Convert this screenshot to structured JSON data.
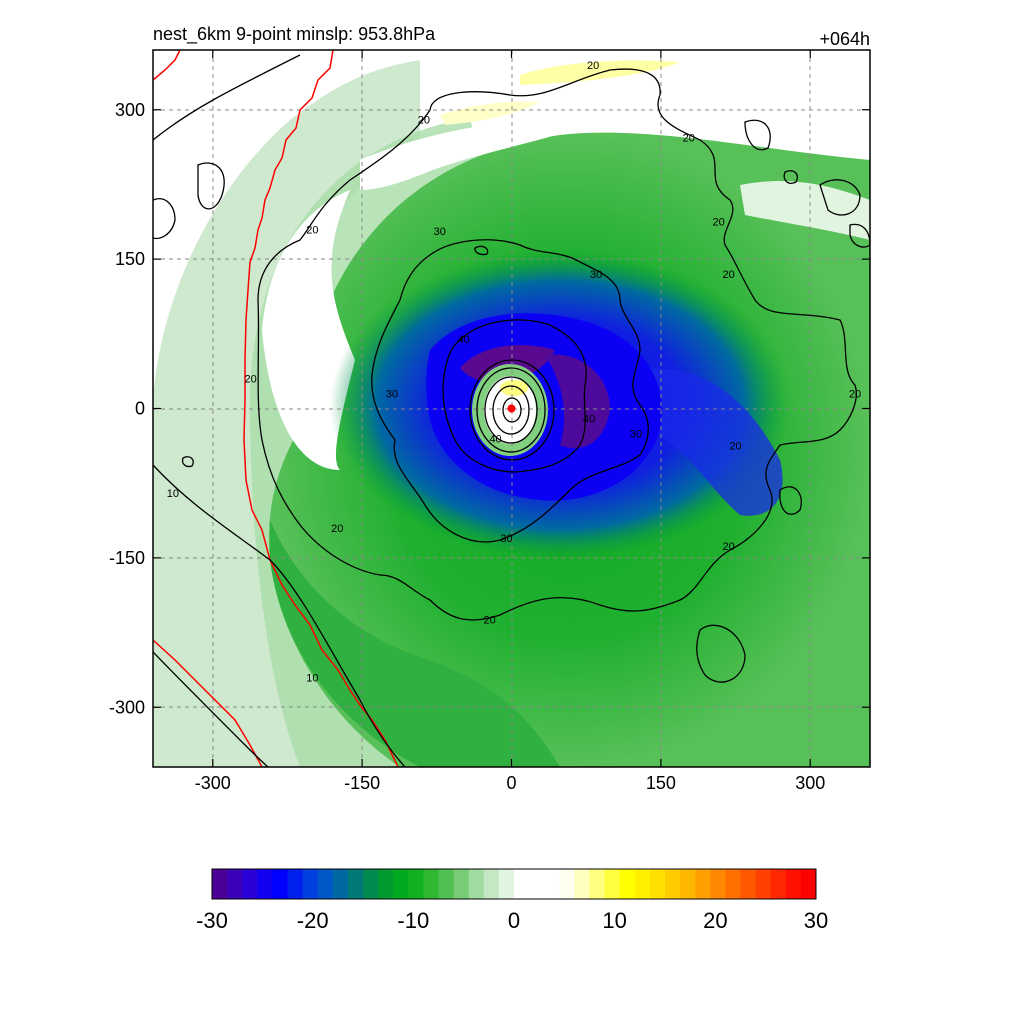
{
  "header": {
    "title": "nest_6km  9-point minslp: 953.8hPa",
    "forecast_hour": "+064h"
  },
  "chart_data": {
    "type": "heatmap",
    "description_units": "km from storm center",
    "xlim": [
      -360,
      360
    ],
    "ylim": [
      -360,
      360
    ],
    "x_ticks": [
      -300,
      -150,
      0,
      150,
      300
    ],
    "y_ticks": [
      300,
      150,
      0,
      -150,
      -300
    ],
    "x_tick_labels": [
      "-300",
      "-150",
      "0",
      "150",
      "300"
    ],
    "y_tick_labels": [
      "300",
      "150",
      "0",
      "-150",
      "-300"
    ],
    "grid": true,
    "storm_center": [
      0,
      0
    ],
    "wind_contours": [
      {
        "level": 10,
        "label": "10"
      },
      {
        "level": 20,
        "label": "20"
      },
      {
        "level": 30,
        "label": "30"
      },
      {
        "level": 40,
        "label": "40"
      }
    ],
    "contour_labels": [
      {
        "x": -340,
        "y": -85,
        "text": "10"
      },
      {
        "x": -200,
        "y": -270,
        "text": "10"
      },
      {
        "x": -262,
        "y": 30,
        "text": "20"
      },
      {
        "x": -200,
        "y": 180,
        "text": "20"
      },
      {
        "x": -88,
        "y": 290,
        "text": "20"
      },
      {
        "x": 82,
        "y": 345,
        "text": "20"
      },
      {
        "x": 178,
        "y": 272,
        "text": "20"
      },
      {
        "x": 208,
        "y": 188,
        "text": "20"
      },
      {
        "x": 218,
        "y": 135,
        "text": "20"
      },
      {
        "x": 345,
        "y": 15,
        "text": "20"
      },
      {
        "x": 225,
        "y": -37,
        "text": "20"
      },
      {
        "x": 218,
        "y": -138,
        "text": "20"
      },
      {
        "x": -22,
        "y": -212,
        "text": "20"
      },
      {
        "x": -175,
        "y": -120,
        "text": "20"
      },
      {
        "x": -120,
        "y": 15,
        "text": "30"
      },
      {
        "x": -72,
        "y": 178,
        "text": "30"
      },
      {
        "x": 85,
        "y": 135,
        "text": "30"
      },
      {
        "x": 125,
        "y": -25,
        "text": "30"
      },
      {
        "x": -5,
        "y": -130,
        "text": "30"
      },
      {
        "x": -48,
        "y": 70,
        "text": "40"
      },
      {
        "x": 78,
        "y": -10,
        "text": "40"
      },
      {
        "x": -16,
        "y": -30,
        "text": "40"
      }
    ],
    "colorbar": {
      "min": -30,
      "max": 30,
      "tick_values": [
        -30,
        -20,
        -10,
        0,
        10,
        20,
        30
      ],
      "tick_labels": [
        "-30",
        "-20",
        "-10",
        "0",
        "10",
        "20",
        "30"
      ],
      "colors": [
        "#4a0096",
        "#3c00b8",
        "#2a00d6",
        "#1400f0",
        "#0000ff",
        "#0020f0",
        "#0040e0",
        "#0058c8",
        "#0068a0",
        "#007878",
        "#008a50",
        "#009a30",
        "#00aa20",
        "#10b020",
        "#30b830",
        "#50c050",
        "#78cc78",
        "#a0dca0",
        "#c4e8c4",
        "#e0f4e0",
        "#ffffff",
        "#ffffff",
        "#ffffff",
        "#fffff0",
        "#ffffc0",
        "#ffff80",
        "#ffff40",
        "#ffff00",
        "#fff000",
        "#ffe000",
        "#ffcc00",
        "#ffb800",
        "#ffa000",
        "#ff8800",
        "#ff7000",
        "#ff5800",
        "#ff4000",
        "#ff2800",
        "#ff1000",
        "#ff0000"
      ]
    },
    "legend": "bottom"
  }
}
